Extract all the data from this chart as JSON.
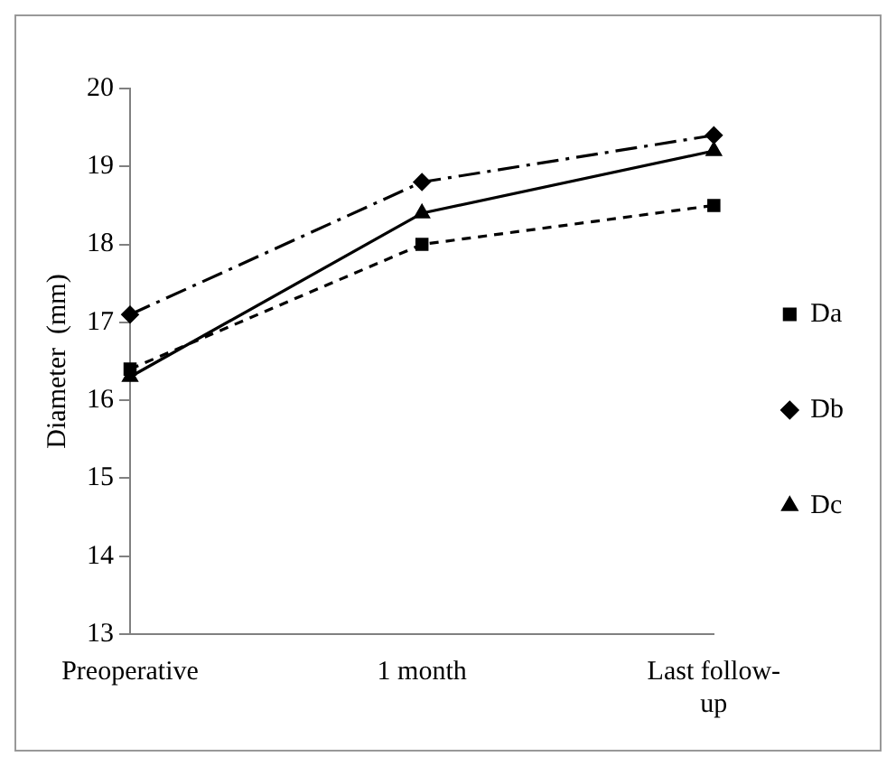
{
  "chart_data": {
    "type": "line",
    "ylabel": "Diameter  (mm)",
    "categories": [
      "Preoperative",
      "1 month",
      "Last follow-up"
    ],
    "series": [
      {
        "name": "Da",
        "color": "#000000",
        "values": [
          16.4,
          18.0,
          18.5
        ],
        "marker": "square",
        "line_style": "dashed"
      },
      {
        "name": "Db",
        "color": "#000000",
        "values": [
          17.1,
          18.8,
          19.4
        ],
        "marker": "diamond",
        "line_style": "dashdot"
      },
      {
        "name": "Dc",
        "color": "#000000",
        "values": [
          16.3,
          18.4,
          19.2
        ],
        "marker": "triangle",
        "line_style": "solid"
      }
    ],
    "ylim": [
      13,
      20
    ],
    "yticks": [
      13,
      14,
      15,
      16,
      17,
      18,
      19,
      20
    ],
    "grid": false,
    "legend": "right"
  }
}
